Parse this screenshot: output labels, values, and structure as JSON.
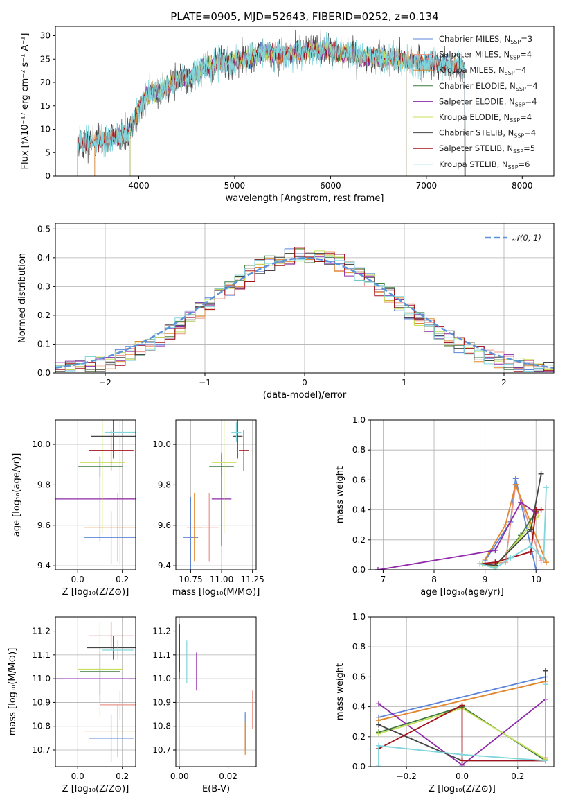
{
  "figure": {
    "title": "PLATE=0905, MJD=52643, FIBERID=0252, z=0.134"
  },
  "colors": {
    "Chabrier MILES": "#5b84d9",
    "Salpeter MILES": "#e8958a",
    "Kroupa MILES": "#e0882c",
    "Chabrier ELODIE": "#3f7a3f",
    "Salpeter ELODIE": "#8e2aa8",
    "Kroupa ELODIE": "#c7e05a",
    "Chabrier STELIB": "#444444",
    "Salpeter STELIB": "#a3121c",
    "Kroupa STELIB": "#7fd6dc",
    "gauss": "#5b93d8"
  },
  "chart_data": [
    {
      "type": "line",
      "id": "spectrum",
      "xlabel": "wavelength [Angstrom, rest frame]",
      "ylabel": "Flux [fλ10⁻¹⁷ erg cm⁻² s⁻¹ A⁻¹]",
      "xlim": [
        3130,
        8330
      ],
      "ylim": [
        0,
        32
      ],
      "xticks": [
        4000,
        5000,
        6000,
        7000,
        8000
      ],
      "yticks": [
        0,
        5,
        10,
        15,
        20,
        25,
        30
      ],
      "legend": "top-right",
      "grid": false,
      "continuum": {
        "x": [
          3360,
          3500,
          3600,
          3700,
          3800,
          3900,
          3950,
          4050,
          4150,
          4300,
          4400,
          4500,
          4600,
          4700,
          4800,
          4900,
          5000,
          5100,
          5200,
          5300,
          5400,
          5500,
          5600,
          5700,
          5800,
          5900,
          6000,
          6100,
          6200,
          6300,
          6400,
          6500,
          6600,
          6700,
          6800,
          6900,
          7000,
          7100,
          7200,
          7300,
          7400
        ],
        "y": [
          7,
          7,
          7.5,
          8,
          8.5,
          9.5,
          12,
          16.5,
          18,
          19,
          20.5,
          21,
          22,
          23,
          24,
          24.5,
          24.5,
          25,
          25.5,
          26.5,
          26,
          26,
          26,
          26.5,
          27,
          27,
          27,
          26,
          26.5,
          25.5,
          25.5,
          25.5,
          25,
          25,
          24.5,
          24.5,
          24,
          24,
          24,
          23.5,
          23
        ]
      },
      "series": [
        {
          "label": "Chabrier MILES, N",
          "sub": "SSP",
          "n": "=3",
          "x_min": 3540,
          "x_max": 7410
        },
        {
          "label": "Salpeter MILES, N",
          "sub": "SSP",
          "n": "=4",
          "x_min": 3540,
          "x_max": 7410
        },
        {
          "label": "Kroupa MILES, N",
          "sub": "SSP",
          "n": "=4",
          "x_min": 3540,
          "x_max": 7410
        },
        {
          "label": "Chabrier ELODIE, N",
          "sub": "SSP",
          "n": "=4",
          "x_min": 3910,
          "x_max": 6790
        },
        {
          "label": "Salpeter ELODIE, N",
          "sub": "SSP",
          "n": "=4",
          "x_min": 3910,
          "x_max": 6790
        },
        {
          "label": "Kroupa ELODIE, N",
          "sub": "SSP",
          "n": "=4",
          "x_min": 3910,
          "x_max": 6790
        },
        {
          "label": "Chabrier STELIB, N",
          "sub": "SSP",
          "n": "=4",
          "x_min": 3360,
          "x_max": 7400
        },
        {
          "label": "Salpeter STELIB, N",
          "sub": "SSP",
          "n": "=5",
          "x_min": 3360,
          "x_max": 7400
        },
        {
          "label": "Kroupa STELIB, N",
          "sub": "SSP",
          "n": "=6",
          "x_min": 3360,
          "x_max": 7400
        }
      ]
    },
    {
      "type": "histogram",
      "id": "residuals",
      "xlabel": "(data-model)/error",
      "ylabel": "Normed distribution",
      "xlim": [
        -2.5,
        2.5
      ],
      "ylim": [
        0,
        0.52
      ],
      "xticks": [
        -2,
        -1,
        0,
        1,
        2
      ],
      "yticks": [
        0,
        0.1,
        0.2,
        0.3,
        0.4,
        0.5
      ],
      "bin_width": 0.1,
      "grid": true,
      "legend": "top-right",
      "gauss_label": "𝒩(0, 1)"
    },
    {
      "type": "errorbar",
      "id": "age-vs-Z",
      "xlabel": "Z [log₁₀(Z/Z⊙)]",
      "ylabel": "age  [log₁₀(age/yr)]",
      "xlim": [
        -0.1,
        0.26
      ],
      "ylim": [
        9.38,
        10.12
      ],
      "xticks": [
        0.0,
        0.2
      ],
      "yticks": [
        9.4,
        9.6,
        9.8,
        10.0
      ],
      "grid": true,
      "points": [
        {
          "model": "Chabrier MILES",
          "x": 0.15,
          "xerr": 0.12,
          "y": 9.54,
          "yerr": 0.13
        },
        {
          "model": "Salpeter MILES",
          "x": 0.19,
          "xerr": 0.06,
          "y": 9.73,
          "yerr": 0.32
        },
        {
          "model": "Kroupa MILES",
          "x": 0.18,
          "xerr": 0.15,
          "y": 9.59,
          "yerr": 0.17
        },
        {
          "model": "Chabrier ELODIE",
          "x": 0.1,
          "xerr": 0.1,
          "y": 9.89,
          "yerr": 0.05
        },
        {
          "model": "Salpeter ELODIE",
          "x": 0.1,
          "xerr": 0.22,
          "y": 9.73,
          "yerr": 0.21
        },
        {
          "model": "Kroupa ELODIE",
          "x": 0.11,
          "xerr": 0.1,
          "y": 9.91,
          "yerr": 0.35
        },
        {
          "model": "Chabrier STELIB",
          "x": 0.16,
          "xerr": 0.1,
          "y": 10.04,
          "yerr": 0.11
        },
        {
          "model": "Salpeter STELIB",
          "x": 0.15,
          "xerr": 0.1,
          "y": 9.97,
          "yerr": 0.1
        },
        {
          "model": "Kroupa STELIB",
          "x": 0.19,
          "xerr": 0.07,
          "y": 10.06,
          "yerr": 0.06
        }
      ]
    },
    {
      "type": "errorbar",
      "id": "age-vs-mass",
      "xlabel": "mass [log₁₀(M/M⊙)]",
      "ylabel": "",
      "xlim": [
        10.63,
        11.28
      ],
      "ylim": [
        9.38,
        10.12
      ],
      "xticks": [
        10.75,
        11.0,
        11.25
      ],
      "yticks": [
        9.4,
        9.6,
        9.8,
        10.0
      ],
      "grid": true,
      "points": [
        {
          "model": "Chabrier MILES",
          "x": 10.75,
          "xerr": 0.06,
          "y": 9.54,
          "yerr": 0.2
        },
        {
          "model": "Salpeter MILES",
          "x": 10.9,
          "xerr": 0.08,
          "y": 9.59,
          "yerr": 0.17
        },
        {
          "model": "Kroupa MILES",
          "x": 10.78,
          "xerr": 0.06,
          "y": 9.59,
          "yerr": 0.17
        },
        {
          "model": "Chabrier ELODIE",
          "x": 11.0,
          "xerr": 0.1,
          "y": 9.89,
          "yerr": 0.05
        },
        {
          "model": "Salpeter ELODIE",
          "x": 11.0,
          "xerr": 0.08,
          "y": 9.73,
          "yerr": 0.23
        },
        {
          "model": "Kroupa ELODIE",
          "x": 11.02,
          "xerr": 0.1,
          "y": 9.91,
          "yerr": 0.35
        },
        {
          "model": "Chabrier STELIB",
          "x": 11.13,
          "xerr": 0.04,
          "y": 10.04,
          "yerr": 0.11
        },
        {
          "model": "Salpeter STELIB",
          "x": 11.18,
          "xerr": 0.04,
          "y": 9.97,
          "yerr": 0.1
        },
        {
          "model": "Kroupa STELIB",
          "x": 11.12,
          "xerr": 0.04,
          "y": 10.06,
          "yerr": 0.05
        }
      ]
    },
    {
      "type": "line",
      "id": "weight-vs-age",
      "xlabel": "age  [log₁₀(age/yr)]",
      "ylabel": "mass weight",
      "xlim": [
        6.75,
        10.35
      ],
      "ylim": [
        0,
        1
      ],
      "xticks": [
        7,
        8,
        9,
        10
      ],
      "yticks": [
        0.0,
        0.2,
        0.4,
        0.6,
        0.8,
        1.0
      ],
      "grid": true,
      "series": [
        {
          "model": "Chabrier MILES",
          "x": [
            9.0,
            9.5,
            9.6,
            10.0
          ],
          "y": [
            0.06,
            0.32,
            0.61,
            0.0
          ]
        },
        {
          "model": "Salpeter MILES",
          "x": [
            9.0,
            9.4,
            9.6,
            10.1
          ],
          "y": [
            0.04,
            0.05,
            0.57,
            0.06
          ]
        },
        {
          "model": "Kroupa MILES",
          "x": [
            9.0,
            9.4,
            9.6,
            10.2
          ],
          "y": [
            0.07,
            0.3,
            0.57,
            0.05
          ]
        },
        {
          "model": "Chabrier ELODIE",
          "x": [
            8.95,
            9.2,
            9.7,
            10.0
          ],
          "y": [
            0.04,
            0.02,
            0.23,
            0.39
          ]
        },
        {
          "model": "Salpeter ELODIE",
          "x": [
            6.9,
            9.2,
            9.7,
            10.0
          ],
          "y": [
            0.0,
            0.13,
            0.45,
            0.38
          ]
        },
        {
          "model": "Kroupa ELODIE",
          "x": [
            8.95,
            9.2,
            9.7,
            10.05
          ],
          "y": [
            0.04,
            0.02,
            0.22,
            0.36
          ]
        },
        {
          "model": "Chabrier STELIB",
          "x": [
            8.9,
            9.2,
            9.9,
            10.1
          ],
          "y": [
            0.04,
            0.03,
            0.27,
            0.64
          ]
        },
        {
          "model": "Salpeter STELIB",
          "x": [
            8.9,
            9.2,
            9.9,
            10.0,
            10.1
          ],
          "y": [
            0.04,
            0.05,
            0.12,
            0.4,
            0.4
          ]
        },
        {
          "model": "Kroupa STELIB",
          "x": [
            8.9,
            9.2,
            9.5,
            9.9,
            10.15,
            10.2
          ],
          "y": [
            0.04,
            0.01,
            0.08,
            0.16,
            0.07,
            0.55
          ]
        }
      ]
    },
    {
      "type": "errorbar",
      "id": "mass-vs-Z",
      "xlabel": "Z [log₁₀(Z/Z⊙)]",
      "ylabel": "mass [log₁₀(M/M⊙)]",
      "xlim": [
        -0.1,
        0.26
      ],
      "ylim": [
        10.63,
        11.26
      ],
      "xticks": [
        0.0,
        0.2
      ],
      "yticks": [
        10.7,
        10.8,
        10.9,
        11.0,
        11.1,
        11.2
      ],
      "grid": true,
      "points": [
        {
          "model": "Chabrier MILES",
          "x": 0.15,
          "xerr": 0.1,
          "y": 10.75,
          "yerr": 0.1
        },
        {
          "model": "Salpeter MILES",
          "x": 0.19,
          "xerr": 0.09,
          "y": 10.89,
          "yerr": 0.06
        },
        {
          "model": "Kroupa MILES",
          "x": 0.18,
          "xerr": 0.15,
          "y": 10.78,
          "yerr": 0.11
        },
        {
          "model": "Chabrier ELODIE",
          "x": 0.1,
          "xerr": 0.09,
          "y": 11.03,
          "yerr": 0.1
        },
        {
          "model": "Salpeter ELODIE",
          "x": 0.1,
          "xerr": 0.2,
          "y": 11.0,
          "yerr": 0.1
        },
        {
          "model": "Kroupa ELODIE",
          "x": 0.1,
          "xerr": 0.1,
          "y": 11.04,
          "yerr": 0.2
        },
        {
          "model": "Chabrier STELIB",
          "x": 0.16,
          "xerr": 0.12,
          "y": 11.13,
          "yerr": 0.05
        },
        {
          "model": "Salpeter STELIB",
          "x": 0.15,
          "xerr": 0.1,
          "y": 11.18,
          "yerr": 0.06
        },
        {
          "model": "Kroupa STELIB",
          "x": 0.18,
          "xerr": 0.07,
          "y": 11.12,
          "yerr": 0.04
        }
      ]
    },
    {
      "type": "errorbar",
      "id": "mass-vs-EBV",
      "xlabel": "E(B-V)",
      "ylabel": "",
      "xlim": [
        -0.0015,
        0.0315
      ],
      "ylim": [
        10.63,
        11.26
      ],
      "xticks": [
        0.0,
        0.02
      ],
      "yticks": [
        10.7,
        10.8,
        10.9,
        11.0,
        11.1,
        11.2
      ],
      "grid": true,
      "points": [
        {
          "model": "Chabrier MILES",
          "x": 0.027,
          "xerr": 0.0,
          "y": 10.78,
          "yerr": 0.08
        },
        {
          "model": "Salpeter MILES",
          "x": 0.03,
          "xerr": 0.0,
          "y": 10.87,
          "yerr": 0.08
        },
        {
          "model": "Kroupa MILES",
          "x": 0.027,
          "xerr": 0.0,
          "y": 10.75,
          "yerr": 0.07
        },
        {
          "model": "Chabrier ELODIE",
          "x": 0.0,
          "xerr": 0.0,
          "y": 10.96,
          "yerr": 0.1
        },
        {
          "model": "Salpeter ELODIE",
          "x": 0.007,
          "xerr": 0.0,
          "y": 11.03,
          "yerr": 0.08
        },
        {
          "model": "Kroupa ELODIE",
          "x": 0.0,
          "xerr": 0.0,
          "y": 10.88,
          "yerr": 0.12
        },
        {
          "model": "Chabrier STELIB",
          "x": 0.0,
          "xerr": 0.0,
          "y": 11.14,
          "yerr": 0.09
        },
        {
          "model": "Salpeter STELIB",
          "x": 0.0,
          "xerr": 0.0,
          "y": 11.13,
          "yerr": 0.1
        },
        {
          "model": "Kroupa STELIB",
          "x": 0.003,
          "xerr": 0.0,
          "y": 11.07,
          "yerr": 0.09
        }
      ]
    },
    {
      "type": "line",
      "id": "weight-vs-Z",
      "xlabel": "Z [log₁₀(Z/Z⊙)]",
      "ylabel": "mass weight",
      "xlim": [
        -0.33,
        0.33
      ],
      "ylim": [
        0,
        1
      ],
      "xticks": [
        -0.2,
        0.0,
        0.2
      ],
      "yticks": [
        0.0,
        0.2,
        0.4,
        0.6,
        0.8,
        1.0
      ],
      "grid": true,
      "series": [
        {
          "model": "Chabrier MILES",
          "x": [
            -0.3,
            0.3,
            0.3
          ],
          "y": [
            0.33,
            0.6,
            0.05
          ]
        },
        {
          "model": "Salpeter MILES",
          "x": [
            -0.3,
            0.3,
            0.3
          ],
          "y": [
            0.31,
            0.57,
            0.06
          ]
        },
        {
          "model": "Kroupa MILES",
          "x": [
            -0.3,
            0.3,
            0.3
          ],
          "y": [
            0.31,
            0.57,
            0.05
          ]
        },
        {
          "model": "Chabrier ELODIE",
          "x": [
            -0.3,
            0.0,
            0.3
          ],
          "y": [
            0.23,
            0.4,
            0.04
          ]
        },
        {
          "model": "Salpeter ELODIE",
          "x": [
            -0.3,
            0.0,
            0.3
          ],
          "y": [
            0.42,
            0.01,
            0.45
          ]
        },
        {
          "model": "Kroupa ELODIE",
          "x": [
            -0.3,
            0.0,
            0.3
          ],
          "y": [
            0.22,
            0.39,
            0.05
          ]
        },
        {
          "model": "Chabrier STELIB",
          "x": [
            -0.3,
            0.0,
            0.3,
            0.3
          ],
          "y": [
            0.28,
            0.04,
            0.04,
            0.64
          ]
        },
        {
          "model": "Salpeter STELIB",
          "x": [
            -0.3,
            0.0,
            0.0,
            0.3
          ],
          "y": [
            0.12,
            0.41,
            0.04,
            0.04
          ]
        },
        {
          "model": "Kroupa STELIB",
          "x": [
            -0.3,
            -0.3,
            0.0,
            0.3,
            0.3
          ],
          "y": [
            0.01,
            0.14,
            0.08,
            0.04,
            0.55
          ]
        }
      ]
    }
  ]
}
